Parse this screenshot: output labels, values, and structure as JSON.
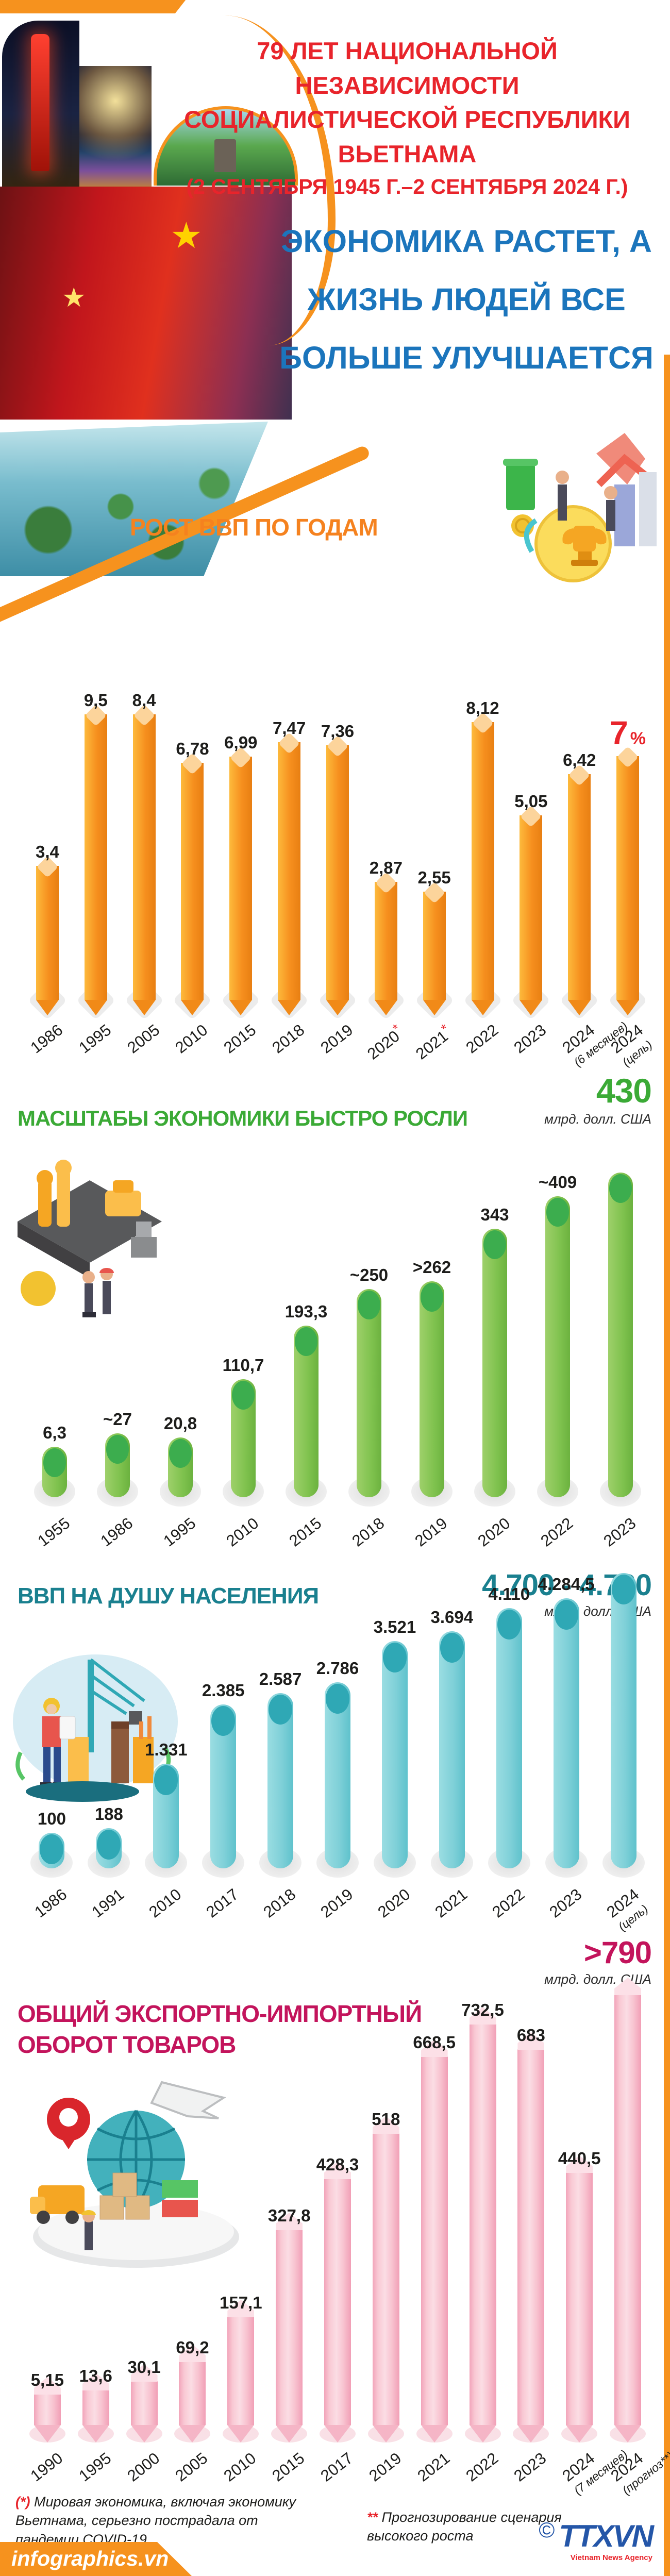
{
  "header": {
    "title_line1": "79 ЛЕТ НАЦИОНАЛЬНОЙ НЕЗАВИСИМОСТИ",
    "title_line2": "СОЦИАЛИСТИЧЕСКОЙ РЕСПУБЛИКИ ВЬЕТНАМА",
    "title_dates": "(2 СЕНТЯБРЯ 1945 Г.–2 СЕНТЯБРЯ 2024 Г.)",
    "subtitle": "ЭКОНОМИКА РАСТЕТ, А ЖИЗНЬ ЛЮДЕЙ ВСЕ БОЛЬШЕ УЛУЧШАЕТСЯ"
  },
  "colors": {
    "accent_orange": "#F5821F",
    "title_red": "#E8242B",
    "title_blue": "#1B75BC",
    "title_green": "#3BAA36",
    "title_teal": "#1A808F",
    "title_crimson": "#C3145C"
  },
  "chart_data": [
    {
      "type": "bar",
      "title": "РОСТ ВВП ПО ГОДАМ",
      "unit": "%",
      "style": "orange",
      "legend_position": "none",
      "grid": false,
      "categories": [
        {
          "y": "1986"
        },
        {
          "y": "1995"
        },
        {
          "y": "2005"
        },
        {
          "y": "2010"
        },
        {
          "y": "2015"
        },
        {
          "y": "2018"
        },
        {
          "y": "2019"
        },
        {
          "y": "2020",
          "sup": "*"
        },
        {
          "y": "2021",
          "sup": "*"
        },
        {
          "y": "2022"
        },
        {
          "y": "2023"
        },
        {
          "y": "2024",
          "note": "(6 месяцев)"
        },
        {
          "y": "2024",
          "note": "(цель)"
        }
      ],
      "values": [
        3.4,
        9.5,
        8.4,
        6.78,
        6.99,
        7.47,
        7.36,
        2.87,
        2.55,
        8.12,
        5.05,
        6.42,
        7
      ],
      "labels": [
        "3,4",
        "9,5",
        "8,4",
        "6,78",
        "6,99",
        "7,47",
        "7,36",
        "2,87",
        "2,55",
        "8,12",
        "5,05",
        "6,42",
        "7 %"
      ],
      "ylim": [
        0,
        9.5
      ],
      "layout": {
        "hmin": 60,
        "hscale": 560
      }
    },
    {
      "type": "bar",
      "title": "МАСШТАБЫ ЭКОНОМИКИ БЫСТРО РОСЛИ",
      "highlight": {
        "value": "430",
        "unit": "млрд. долл. США"
      },
      "style": "green",
      "legend_position": "none",
      "grid": false,
      "categories": [
        {
          "y": "1955"
        },
        {
          "y": "1986"
        },
        {
          "y": "1995"
        },
        {
          "y": "2010"
        },
        {
          "y": "2015"
        },
        {
          "y": "2018"
        },
        {
          "y": "2019"
        },
        {
          "y": "2020"
        },
        {
          "y": "2022"
        },
        {
          "y": "2023"
        }
      ],
      "values": [
        6.3,
        27,
        20.8,
        110.7,
        193.3,
        250,
        262,
        343,
        409,
        430
      ],
      "labels": [
        "6,3",
        "~27",
        "20,8",
        "110,7",
        "193,3",
        "~250",
        ">262",
        "343",
        "~409",
        ""
      ],
      "ylim": [
        0,
        430
      ],
      "layout": {
        "hmin": 90,
        "hscale": 540
      }
    },
    {
      "type": "bar",
      "title": "ВВП НА ДУШУ НАСЕЛЕНИЯ",
      "highlight": {
        "value": "4.700 - 4.730",
        "unit": "млрд. долл. США"
      },
      "style": "cyan",
      "legend_position": "none",
      "grid": false,
      "categories": [
        {
          "y": "1986"
        },
        {
          "y": "1991"
        },
        {
          "y": "2010"
        },
        {
          "y": "2017"
        },
        {
          "y": "2018"
        },
        {
          "y": "2019"
        },
        {
          "y": "2020"
        },
        {
          "y": "2021"
        },
        {
          "y": "2022"
        },
        {
          "y": "2023"
        },
        {
          "y": "2024",
          "note": "(цель)"
        }
      ],
      "values": [
        100,
        188,
        1331,
        2385,
        2587,
        2786,
        3521,
        3694,
        4110,
        4284.5,
        4730
      ],
      "labels": [
        "100",
        "188",
        "1.331",
        "2.385",
        "2.587",
        "2.786",
        "3.521",
        "3.694",
        "4.110",
        "4.284,5",
        ""
      ],
      "ylim": [
        0,
        4730
      ],
      "layout": {
        "hmin": 58,
        "hscale": 515
      }
    },
    {
      "type": "bar",
      "title": "ОБЩИЙ ЭКСПОРТНО-ИМПОРТНЫЙ ОБОРОТ ТОВАРОВ",
      "highlight": {
        "value": ">790",
        "unit": "млрд. долл. США"
      },
      "style": "pink",
      "legend_position": "none",
      "grid": false,
      "categories": [
        {
          "y": "1990"
        },
        {
          "y": "1995"
        },
        {
          "y": "2000"
        },
        {
          "y": "2005"
        },
        {
          "y": "2010"
        },
        {
          "y": "2015"
        },
        {
          "y": "2017"
        },
        {
          "y": "2019"
        },
        {
          "y": "2021"
        },
        {
          "y": "2022"
        },
        {
          "y": "2023"
        },
        {
          "y": "2024",
          "note": "(7 месяцев)"
        },
        {
          "y": "2024",
          "note": "(прогноз**)"
        }
      ],
      "values": [
        5.15,
        13.6,
        30.1,
        69.2,
        157.1,
        327.8,
        428.3,
        518,
        668.5,
        732.5,
        683,
        440.5,
        790
      ],
      "labels": [
        "5,15",
        "13,6",
        "30,1",
        "69,2",
        "157,1",
        "327,8",
        "428,3",
        "518",
        "668,5",
        "732,5",
        "683",
        "440,5",
        ""
      ],
      "ylim": [
        0,
        790
      ],
      "layout": {
        "hmin": 55,
        "hscale": 780
      }
    }
  ],
  "footer": {
    "note1_mark": "(*)",
    "note1": "Мировая экономика, включая экономику Вьетнама, серьезно пострадала от пандемии COVID-19",
    "note2_mark": "**",
    "note2": "Прогнозирование сценария высокого роста",
    "copyright": "©",
    "logo": "TTXVN",
    "logo_sub": "Vietnam News Agency",
    "brand": "infographics.vn"
  }
}
